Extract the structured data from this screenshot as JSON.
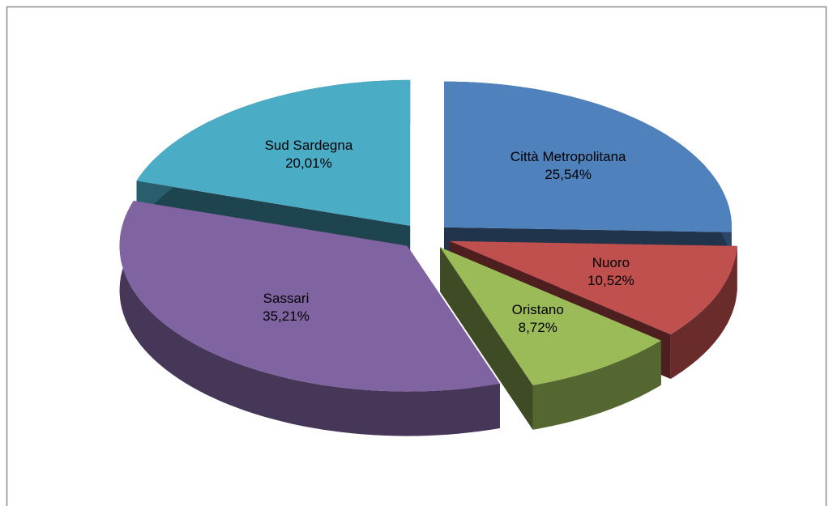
{
  "chart_data": {
    "type": "pie",
    "categories": [
      "Città Metropolitana",
      "Nuoro",
      "Oristano",
      "Sassari",
      "Sud Sardegna"
    ],
    "values": [
      25.54,
      10.52,
      8.72,
      35.21,
      20.01
    ],
    "value_labels": [
      "25,54%",
      "10,52%",
      "8,72%",
      "35,21%",
      "20,01%"
    ],
    "colors": [
      "#4f81bd",
      "#c0504d",
      "#9bbb59",
      "#8064a2",
      "#4bacc6"
    ]
  }
}
